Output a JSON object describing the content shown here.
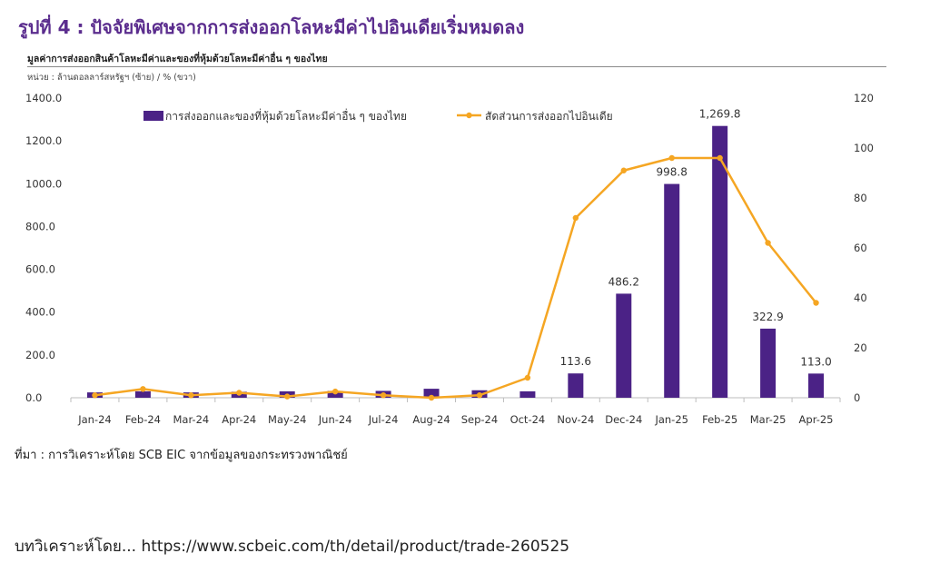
{
  "header": {
    "title": "รูปที่ 4 : ปัจจัยพิเศษจากการส่งออกโลหะมีค่าไปอินเดียเริ่มหมดลง",
    "subtitle": "มูลค่าการส่งออกสินค้าโลหะมีค่าและของที่หุ้มด้วยโลหะมีค่าอื่น ๆ ของไทย",
    "unit": "หน่วย : ล้านดอลลาร์สหรัฐฯ (ซ้าย) / % (ขวา)"
  },
  "chart_data": {
    "type": "bar",
    "categories": [
      "Jan-24",
      "Feb-24",
      "Mar-24",
      "Apr-24",
      "May-24",
      "Jun-24",
      "Jul-24",
      "Aug-24",
      "Sep-24",
      "Oct-24",
      "Nov-24",
      "Dec-24",
      "Jan-25",
      "Feb-25",
      "Mar-25",
      "Apr-25"
    ],
    "series": [
      {
        "name": "การส่งออกและของที่หุ้มด้วยโลหะมีค่าอื่น ๆ ของไทย",
        "kind": "bar",
        "axis": "left",
        "color": "#4b2286",
        "values": [
          25,
          30,
          25,
          28,
          30,
          32,
          32,
          42,
          35,
          30,
          113.6,
          486.2,
          998.8,
          1269.8,
          322.9,
          113.0
        ]
      },
      {
        "name": "สัดส่วนการส่งออกไปอินเดีย",
        "kind": "line",
        "axis": "right",
        "color": "#f5a623",
        "values": [
          1,
          3.5,
          1,
          2,
          0.5,
          2.5,
          1,
          0,
          1,
          8,
          72,
          91,
          96,
          96,
          62,
          38
        ]
      }
    ],
    "data_labels": [
      "",
      "",
      "",
      "",
      "",
      "",
      "",
      "",
      "",
      "",
      "113.6",
      "486.2",
      "998.8",
      "1,269.8",
      "322.9",
      "113.0"
    ],
    "yleft": {
      "ylim": [
        0,
        1400
      ],
      "ticks": [
        "0.0",
        "200.0",
        "400.0",
        "600.0",
        "800.0",
        "1000.0",
        "1200.0",
        "1400.0"
      ]
    },
    "yright": {
      "ylim": [
        0,
        120
      ],
      "ticks": [
        "0",
        "20",
        "40",
        "60",
        "80",
        "100",
        "120"
      ]
    },
    "grid": false,
    "legend": "top"
  },
  "source": "ที่มา : การวิเคราะห์โดย SCB EIC จากข้อมูลของกระทรวงพาณิชย์",
  "footer": "บทวิเคราะห์โดย... https://www.scbeic.com/th/detail/product/trade-260525"
}
